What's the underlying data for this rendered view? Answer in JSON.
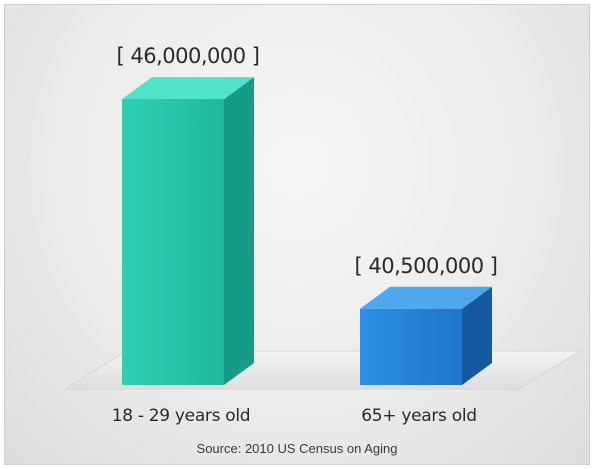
{
  "chart_data": {
    "type": "bar",
    "categories": [
      "18 - 29 years old",
      "65+ years old"
    ],
    "values": [
      46000000,
      40500000
    ],
    "value_labels": [
      "[ 46,000,000 ]",
      "[ 40,500,000 ]"
    ],
    "title": "",
    "xlabel": "",
    "ylabel": "",
    "ylim": [
      38500000,
      46500000
    ],
    "grid": false,
    "legend": "none",
    "annotations": [
      "Source: 2010 US Census on Aging"
    ],
    "colors": {
      "bars": [
        {
          "front": "#2ed0b4",
          "front_dark": "#20b89e",
          "side": "#169c86",
          "top": "#4fe3c7"
        },
        {
          "front": "#2d8fe3",
          "front_dark": "#1f76c9",
          "side": "#155aa0",
          "top": "#4fa8ee"
        }
      ]
    }
  }
}
